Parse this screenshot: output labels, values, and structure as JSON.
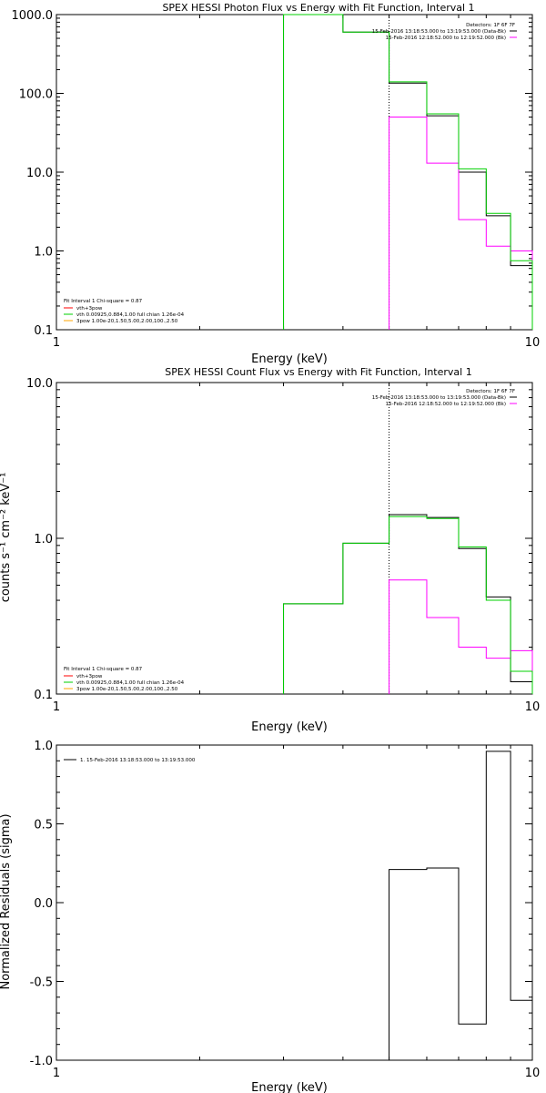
{
  "colors": {
    "data": "#000000",
    "model": "#ff00ff",
    "vth": "#00d000",
    "pow": "#ffa500",
    "fit_total": "#ff0000"
  },
  "chart_data": [
    {
      "type": "line",
      "title": "SPEX HESSI Photon Flux vs Energy with Fit Function, Interval 1",
      "xlabel": "Energy (keV)",
      "ylabel": "",
      "xlim": [
        1,
        10
      ],
      "ylim": [
        0.1,
        1000
      ],
      "xscale": "log",
      "yscale": "log",
      "xticks": [
        1,
        10
      ],
      "xticklabels": [
        "1",
        "10"
      ],
      "yticks": [
        0.1,
        1,
        10,
        100,
        1000
      ],
      "yticklabels": [
        "0.1",
        "1.0",
        "10.0",
        "100.0",
        "1000.0"
      ],
      "vline": 5,
      "legend_right": [
        "Detectors: 1F 6F 7F",
        "15-Feb-2016 13:18:53.000 to 13:19:53.000 (Data-Bk)",
        "15-Feb-2016 12:18:52.000 to 12:19:52.000 (Bk)"
      ],
      "legend_left": [
        "Fit Interval 1    Chi-square = 0.87",
        "vth+3pow",
        "vth 0.00925,0.884,1.00  full chian 1.26e-04",
        "3pow 1.00e-20,1.50,5.00,2.00,100.,2.50"
      ],
      "edges": [
        3,
        4,
        5,
        6,
        7,
        8,
        9,
        10
      ],
      "series": [
        {
          "name": "Data-Bk",
          "color": "data",
          "values": [
            1000,
            600,
            135,
            52,
            10,
            2.8,
            0.65
          ]
        },
        {
          "name": "Bk",
          "color": "model",
          "values": [
            null,
            null,
            50,
            13,
            2.5,
            1.15,
            1.0
          ]
        },
        {
          "name": "vth+3pow",
          "color": "vth",
          "values": [
            1000,
            600,
            140,
            55,
            11,
            3.0,
            0.75
          ]
        }
      ]
    },
    {
      "type": "line",
      "title": "SPEX HESSI Count Flux vs Energy with Fit Function, Interval 1",
      "xlabel": "Energy (keV)",
      "ylabel": "counts s⁻¹ cm⁻² keV⁻¹",
      "xlim": [
        1,
        10
      ],
      "ylim": [
        0.1,
        10
      ],
      "xscale": "log",
      "yscale": "log",
      "xticks": [
        1,
        10
      ],
      "xticklabels": [
        "1",
        "10"
      ],
      "yticks": [
        0.1,
        1,
        10
      ],
      "yticklabels": [
        "0.1",
        "1.0",
        "10.0"
      ],
      "vline": 5,
      "legend_right": [
        "Detectors: 1F 6F 7F",
        "15-Feb-2016 13:18:53.000 to 13:19:53.000 (Data-Bk)",
        "15-Feb-2016 12:18:52.000 to 12:19:52.000 (Bk)"
      ],
      "legend_left": [
        "Fit Interval 1    Chi-square = 0.87",
        "vth+3pow",
        "vth 0.00925,0.884,1.00  full chian 1.26e-04",
        "3pow 1.00e-20,1.50,5.00,2.00,100.,2.50"
      ],
      "edges": [
        3,
        4,
        5,
        6,
        7,
        8,
        9,
        10
      ],
      "series": [
        {
          "name": "Data-Bk",
          "color": "data",
          "values": [
            0.38,
            0.93,
            1.42,
            1.36,
            0.86,
            0.42,
            0.12
          ]
        },
        {
          "name": "Bk",
          "color": "model",
          "values": [
            null,
            null,
            0.54,
            0.31,
            0.2,
            0.17,
            0.19
          ]
        },
        {
          "name": "vth+3pow",
          "color": "vth",
          "values": [
            0.38,
            0.93,
            1.38,
            1.34,
            0.88,
            0.4,
            0.14
          ]
        }
      ]
    },
    {
      "type": "line",
      "title": "",
      "xlabel": "Energy (keV)",
      "ylabel": "Normalized Residuals (sigma)",
      "xlim": [
        1,
        10
      ],
      "ylim": [
        -1.0,
        1.0
      ],
      "xscale": "log",
      "yscale": "linear",
      "xticks": [
        1,
        10
      ],
      "xticklabels": [
        "1",
        "10"
      ],
      "yticks": [
        -1.0,
        -0.5,
        0.0,
        0.5,
        1.0
      ],
      "yticklabels": [
        "-1.0",
        "-0.5",
        "0.0",
        "0.5",
        "1.0"
      ],
      "legend_left": [
        "1. 15-Feb-2016 13:18:53.000 to 13:19:53.000"
      ],
      "edges": [
        5,
        6,
        7,
        8,
        9,
        10
      ],
      "series": [
        {
          "name": "1. 15-Feb-2016 13:18:53.000 to 13:19:53.000",
          "color": "data",
          "values": [
            0.21,
            0.22,
            -0.77,
            0.96,
            -0.62
          ]
        }
      ]
    }
  ]
}
